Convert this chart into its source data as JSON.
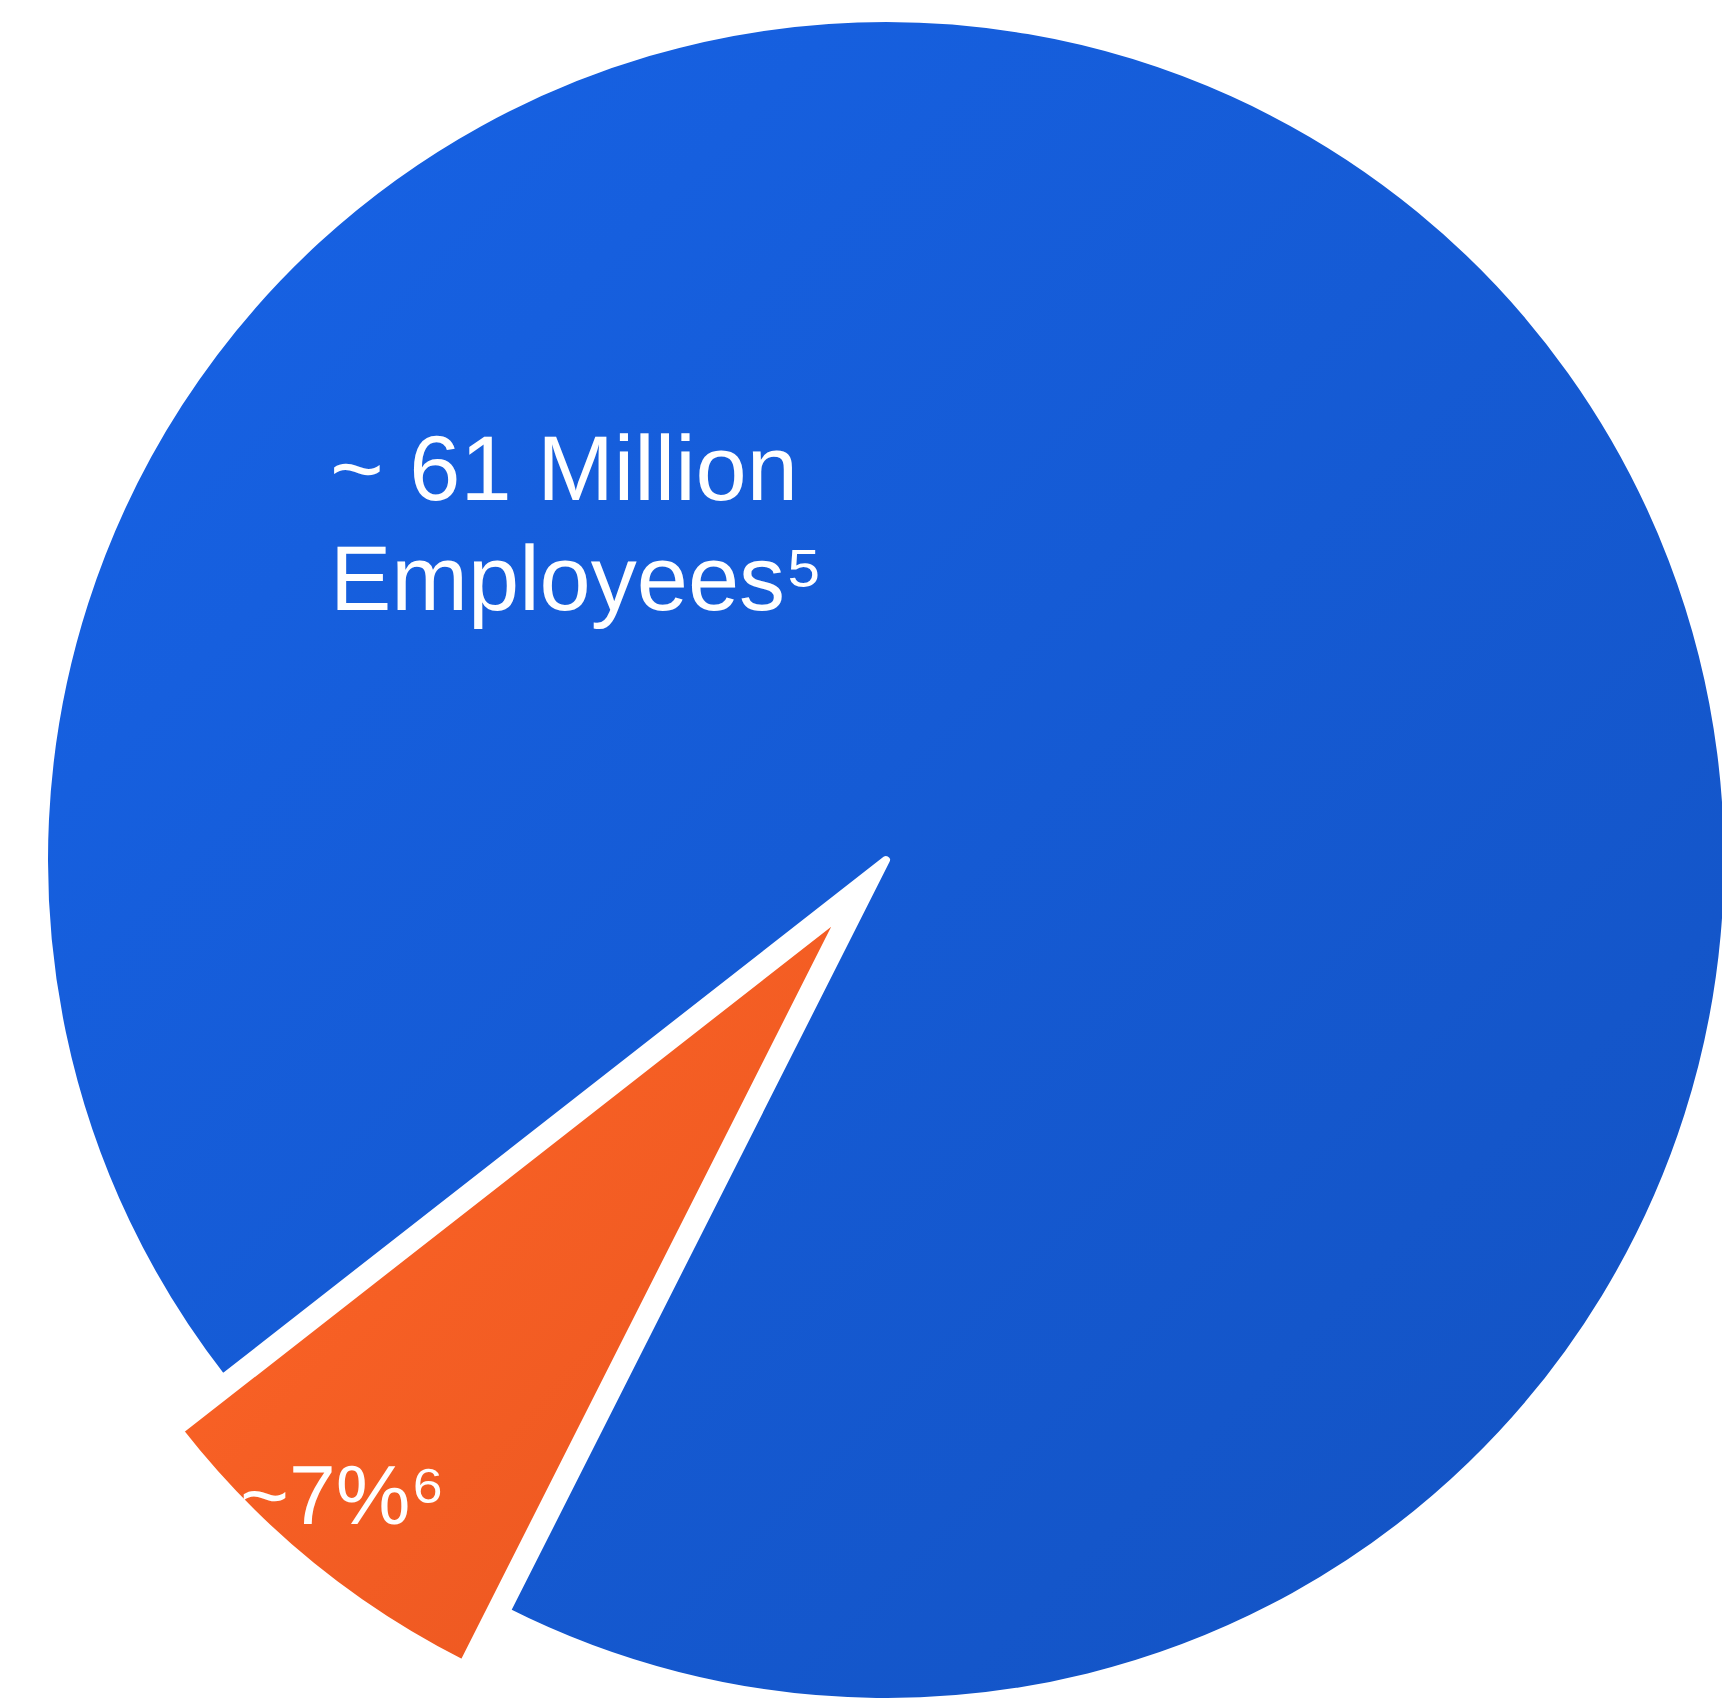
{
  "chart_data": {
    "type": "pie",
    "categories": [
      "~ 61 Million Employees⁵",
      "~7%⁶"
    ],
    "values": [
      93,
      7
    ],
    "colors": [
      "#1457cc",
      "#f65a22"
    ]
  }
}
